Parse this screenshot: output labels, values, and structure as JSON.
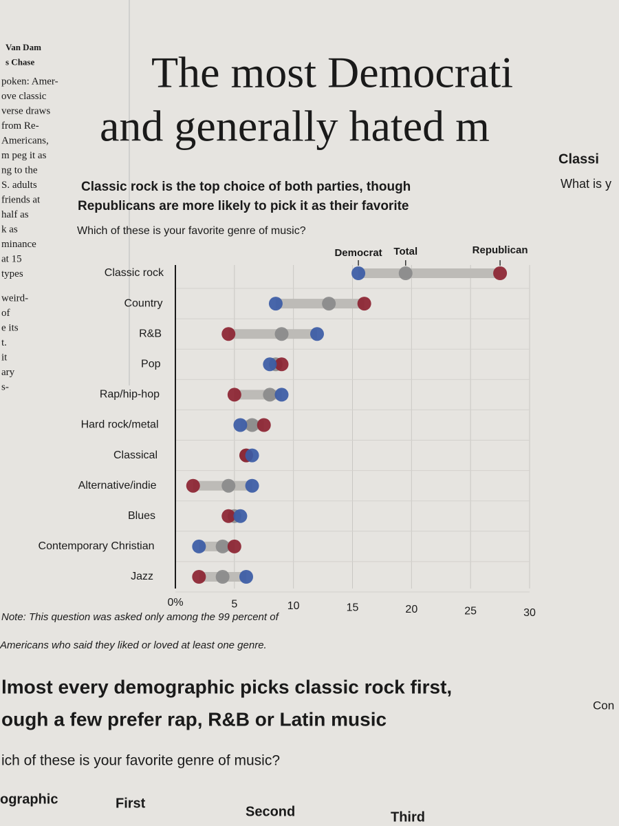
{
  "headline": [
    "The most Democrati",
    "and generally hated m"
  ],
  "side_heading": [
    "Classi",
    "What is y"
  ],
  "sidebar": [
    "Van Dam",
    "s Chase",
    "poken: Amer-",
    "ove classic",
    "verse draws",
    "from Re-",
    "Americans,",
    "m peg it as",
    "ng to the",
    "S. adults",
    "friends at",
    "half as",
    "k as",
    "minance",
    "at 15",
    "types",
    "weird-",
    "of",
    "e its",
    "t.",
    "it",
    "ary",
    "s-"
  ],
  "chart_data": {
    "type": "dot",
    "title": [
      "Classic rock is the top choice of both parties, though",
      "Republicans are more likely to pick it as their favorite"
    ],
    "subtitle": "Which of these is your favorite genre of music?",
    "categories": [
      "Classic rock",
      "Country",
      "R&B",
      "Pop",
      "Rap/hip-hop",
      "Hard rock/metal",
      "Classical",
      "Alternative/indie",
      "Blues",
      "Contemporary Christian",
      "Jazz"
    ],
    "series": [
      {
        "name": "Democrat",
        "color": "#3b5ba5",
        "values": [
          15.5,
          8.5,
          12,
          8,
          9,
          5.5,
          6.5,
          6.5,
          5.5,
          2,
          6
        ]
      },
      {
        "name": "Total",
        "color": "#8a8a8a",
        "values": [
          19.5,
          13,
          9,
          8.5,
          8,
          6.5,
          6,
          4.5,
          5,
          4,
          4
        ]
      },
      {
        "name": "Republican",
        "color": "#8c2331",
        "values": [
          27.5,
          16,
          4.5,
          9,
          5,
          7.5,
          6,
          1.5,
          4.5,
          5,
          2
        ]
      }
    ],
    "xlim": [
      0,
      30
    ],
    "xticks": [
      {
        "value": 0,
        "label": "0%"
      },
      5,
      10,
      15,
      20,
      25,
      30
    ],
    "grid": true,
    "note": [
      "Note: This question was asked only among the 99 percent of",
      "Americans who said they liked or loved at least one genre."
    ]
  },
  "next_section": {
    "title": [
      "lmost every demographic picks classic rock first,",
      "ough a few prefer rap, R&B or Latin music"
    ],
    "subtitle": "ich of these is your favorite genre of music?",
    "columns": [
      "ographic",
      "First",
      "Second",
      "Third"
    ],
    "side": "Con"
  }
}
